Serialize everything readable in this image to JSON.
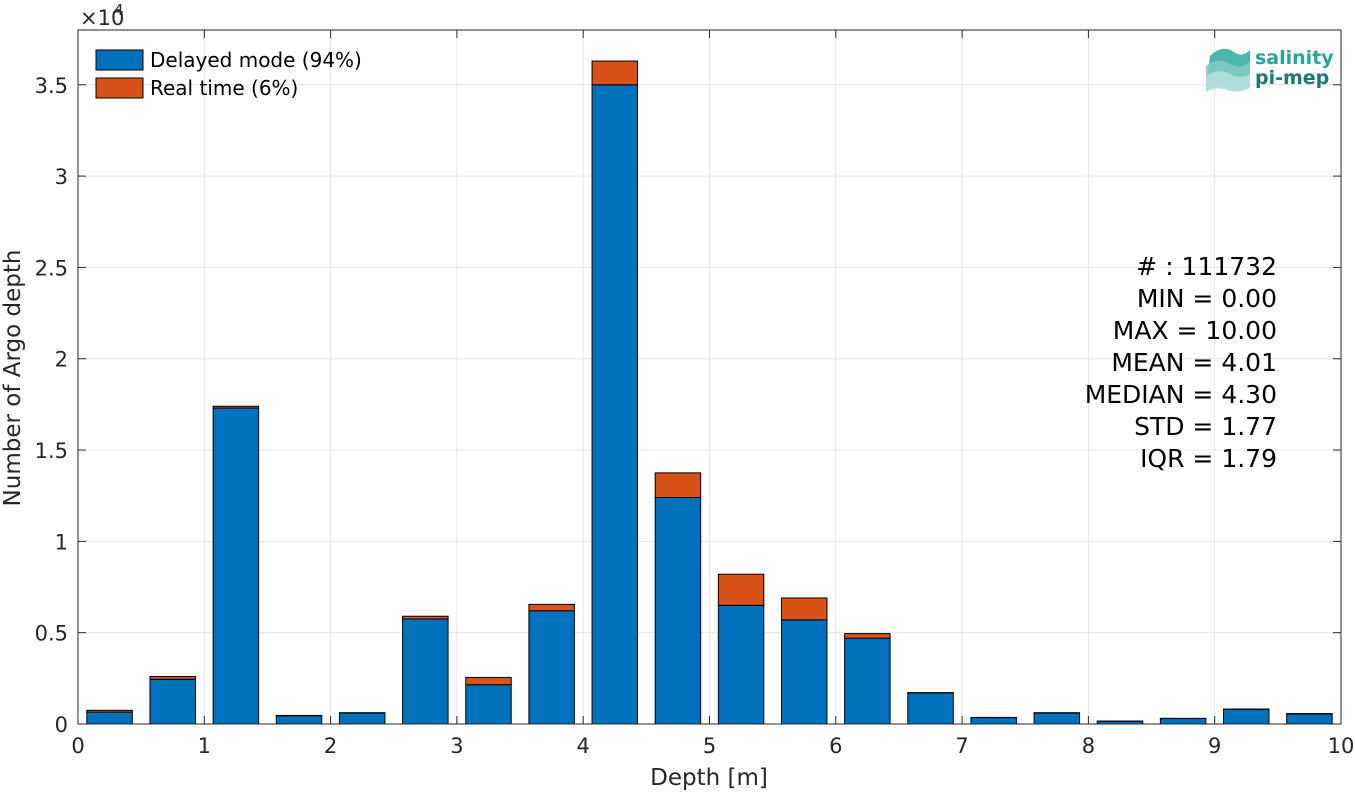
{
  "chart_data": {
    "type": "bar",
    "stacked": true,
    "xlabel": "Depth [m]",
    "ylabel": "Number of Argo depth",
    "xlim": [
      0,
      10
    ],
    "ylim": [
      0,
      38000
    ],
    "y_exponent_label": "×10",
    "y_exponent_power": "4",
    "xticks": [
      "0",
      "1",
      "2",
      "3",
      "4",
      "5",
      "6",
      "7",
      "8",
      "9",
      "10"
    ],
    "yticks": [
      "0",
      "0.5",
      "1",
      "1.5",
      "2",
      "2.5",
      "3",
      "3.5"
    ],
    "ytick_values": [
      0,
      5000,
      10000,
      15000,
      20000,
      25000,
      30000,
      35000
    ],
    "grid": true,
    "legend_position": "top-left",
    "bin_edges": [
      0,
      0.5,
      1,
      1.5,
      2,
      2.5,
      3,
      3.5,
      4,
      4.5,
      5,
      5.5,
      6,
      6.5,
      7,
      7.5,
      8,
      8.5,
      9,
      9.5,
      10
    ],
    "series": [
      {
        "name": "Delayed mode (94%)",
        "color": "#0072BD",
        "values": [
          650,
          2450,
          17300,
          450,
          600,
          5750,
          2150,
          6200,
          35000,
          12400,
          6500,
          5700,
          4700,
          1700,
          350,
          600,
          150,
          300,
          800,
          550
        ]
      },
      {
        "name": "Real time (6%)",
        "color": "#D95319",
        "values": [
          100,
          150,
          100,
          20,
          20,
          150,
          400,
          350,
          1300,
          1350,
          1700,
          1200,
          250,
          20,
          10,
          20,
          10,
          10,
          20,
          20
        ]
      }
    ]
  },
  "stats": {
    "count": "# : 111732",
    "min": "MIN = 0.00",
    "max": "MAX =  10.00",
    "mean": "MEAN = 4.01",
    "median": "MEDIAN = 4.30",
    "std": "STD = 1.77",
    "iqr": "IQR = 1.79"
  },
  "logo": {
    "line1": "salinity",
    "line2": "pi-mep",
    "color1": "#26a69a",
    "color2": "#1b7a70"
  }
}
